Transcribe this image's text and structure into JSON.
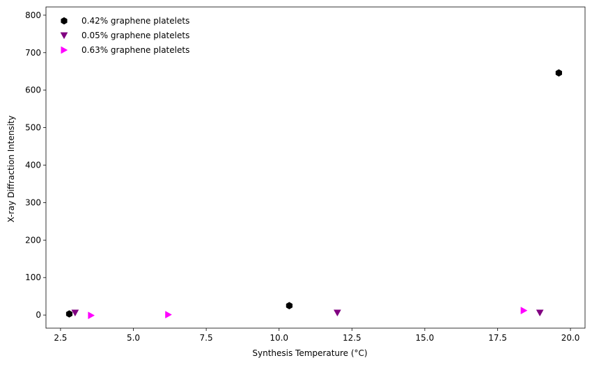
{
  "chart_data": {
    "type": "scatter",
    "xlabel": "Synthesis Temperature (°C)",
    "ylabel": "X-ray Diffraction Intensity",
    "xlim": [
      2.0,
      20.5
    ],
    "ylim": [
      -35,
      822
    ],
    "xticks": [
      2.5,
      5.0,
      7.5,
      10.0,
      12.5,
      15.0,
      17.5,
      20.0
    ],
    "xtick_labels": [
      "2.5",
      "5.0",
      "7.5",
      "10.0",
      "12.5",
      "15.0",
      "17.5",
      "20.0"
    ],
    "yticks": [
      0,
      100,
      200,
      300,
      400,
      500,
      600,
      700,
      800
    ],
    "ytick_labels": [
      "0",
      "100",
      "200",
      "300",
      "400",
      "500",
      "600",
      "700",
      "800"
    ],
    "grid": false,
    "legend_position": "top-left",
    "series": [
      {
        "name": "0.42% graphene platelets",
        "marker": "hexagon",
        "color": "#000000",
        "points": [
          [
            2.8,
            3
          ],
          [
            10.35,
            25
          ],
          [
            19.6,
            646
          ]
        ]
      },
      {
        "name": "0.05% graphene platelets",
        "marker": "triangle-down",
        "color": "#800080",
        "points": [
          [
            3.0,
            6
          ],
          [
            12.0,
            6
          ],
          [
            18.95,
            6
          ]
        ]
      },
      {
        "name": "0.63% graphene platelets",
        "marker": "triangle-right",
        "color": "#ff00ff",
        "points": [
          [
            3.55,
            -1
          ],
          [
            6.2,
            1
          ],
          [
            18.4,
            12
          ]
        ]
      }
    ]
  }
}
